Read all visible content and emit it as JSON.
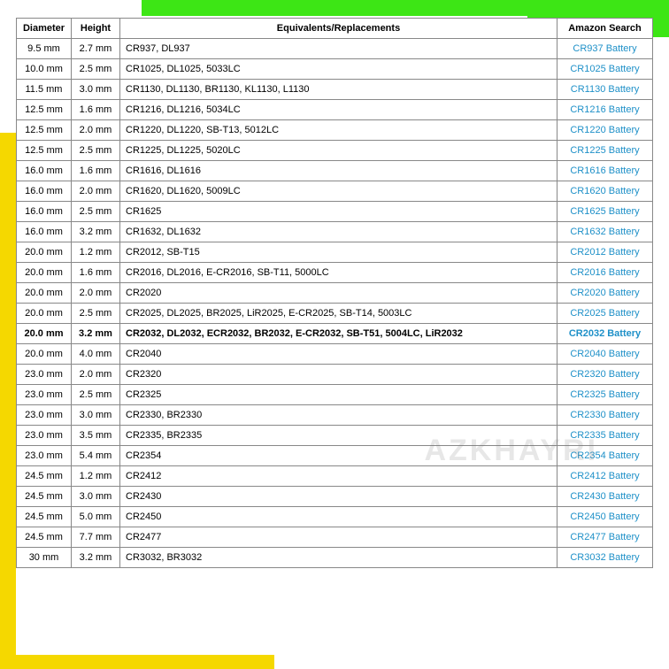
{
  "columns": [
    "Diameter",
    "Height",
    "Equivalents/Replacements",
    "Amazon Search"
  ],
  "link_color": "#1e90c8",
  "watermark": "AZKHAYRI",
  "rows": [
    {
      "diameter": "9.5 mm",
      "height": "2.7 mm",
      "equiv": "CR937, DL937",
      "search": "CR937 Battery",
      "bold": false
    },
    {
      "diameter": "10.0 mm",
      "height": "2.5 mm",
      "equiv": "CR1025, DL1025, 5033LC",
      "search": "CR1025 Battery",
      "bold": false
    },
    {
      "diameter": "11.5 mm",
      "height": "3.0 mm",
      "equiv": "CR1130, DL1130, BR1130, KL1130, L1130",
      "search": "CR1130 Battery",
      "bold": false
    },
    {
      "diameter": "12.5 mm",
      "height": "1.6 mm",
      "equiv": "CR1216, DL1216, 5034LC",
      "search": "CR1216 Battery",
      "bold": false
    },
    {
      "diameter": "12.5 mm",
      "height": "2.0 mm",
      "equiv": "CR1220, DL1220, SB-T13, 5012LC",
      "search": "CR1220 Battery",
      "bold": false
    },
    {
      "diameter": "12.5 mm",
      "height": "2.5 mm",
      "equiv": "CR1225, DL1225, 5020LC",
      "search": "CR1225 Battery",
      "bold": false
    },
    {
      "diameter": "16.0 mm",
      "height": "1.6 mm",
      "equiv": "CR1616, DL1616",
      "search": "CR1616 Battery",
      "bold": false
    },
    {
      "diameter": "16.0 mm",
      "height": "2.0 mm",
      "equiv": "CR1620, DL1620, 5009LC",
      "search": "CR1620 Battery",
      "bold": false
    },
    {
      "diameter": "16.0 mm",
      "height": "2.5 mm",
      "equiv": "CR1625",
      "search": "CR1625 Battery",
      "bold": false
    },
    {
      "diameter": "16.0 mm",
      "height": "3.2 mm",
      "equiv": "CR1632, DL1632",
      "search": "CR1632 Battery",
      "bold": false
    },
    {
      "diameter": "20.0 mm",
      "height": "1.2 mm",
      "equiv": "CR2012, SB-T15",
      "search": "CR2012 Battery",
      "bold": false
    },
    {
      "diameter": "20.0 mm",
      "height": "1.6 mm",
      "equiv": "CR2016, DL2016, E-CR2016, SB-T11, 5000LC",
      "search": "CR2016 Battery",
      "bold": false
    },
    {
      "diameter": "20.0 mm",
      "height": "2.0 mm",
      "equiv": "CR2020",
      "search": "CR2020 Battery",
      "bold": false
    },
    {
      "diameter": "20.0 mm",
      "height": "2.5 mm",
      "equiv": "CR2025, DL2025, BR2025, LiR2025, E-CR2025, SB-T14, 5003LC",
      "search": "CR2025 Battery",
      "bold": false
    },
    {
      "diameter": "20.0 mm",
      "height": "3.2 mm",
      "equiv": "CR2032, DL2032, ECR2032, BR2032, E-CR2032, SB-T51, 5004LC, LiR2032",
      "search": "CR2032 Battery",
      "bold": true
    },
    {
      "diameter": "20.0 mm",
      "height": "4.0 mm",
      "equiv": "CR2040",
      "search": "CR2040 Battery",
      "bold": false
    },
    {
      "diameter": "23.0 mm",
      "height": "2.0 mm",
      "equiv": "CR2320",
      "search": "CR2320 Battery",
      "bold": false
    },
    {
      "diameter": "23.0 mm",
      "height": "2.5 mm",
      "equiv": "CR2325",
      "search": "CR2325 Battery",
      "bold": false
    },
    {
      "diameter": "23.0 mm",
      "height": "3.0 mm",
      "equiv": "CR2330, BR2330",
      "search": "CR2330 Battery",
      "bold": false
    },
    {
      "diameter": "23.0 mm",
      "height": "3.5 mm",
      "equiv": "CR2335, BR2335",
      "search": "CR2335 Battery",
      "bold": false
    },
    {
      "diameter": "23.0 mm",
      "height": "5.4 mm",
      "equiv": "CR2354",
      "search": "CR2354 Battery",
      "bold": false
    },
    {
      "diameter": "24.5 mm",
      "height": "1.2 mm",
      "equiv": "CR2412",
      "search": "CR2412 Battery",
      "bold": false
    },
    {
      "diameter": "24.5 mm",
      "height": "3.0 mm",
      "equiv": "CR2430",
      "search": "CR2430 Battery",
      "bold": false
    },
    {
      "diameter": "24.5 mm",
      "height": "5.0 mm",
      "equiv": "CR2450",
      "search": "CR2450 Battery",
      "bold": false
    },
    {
      "diameter": "24.5 mm",
      "height": "7.7 mm",
      "equiv": "CR2477",
      "search": "CR2477 Battery",
      "bold": false
    },
    {
      "diameter": "30 mm",
      "height": "3.2 mm",
      "equiv": "CR3032, BR3032",
      "search": "CR3032 Battery",
      "bold": false
    }
  ]
}
